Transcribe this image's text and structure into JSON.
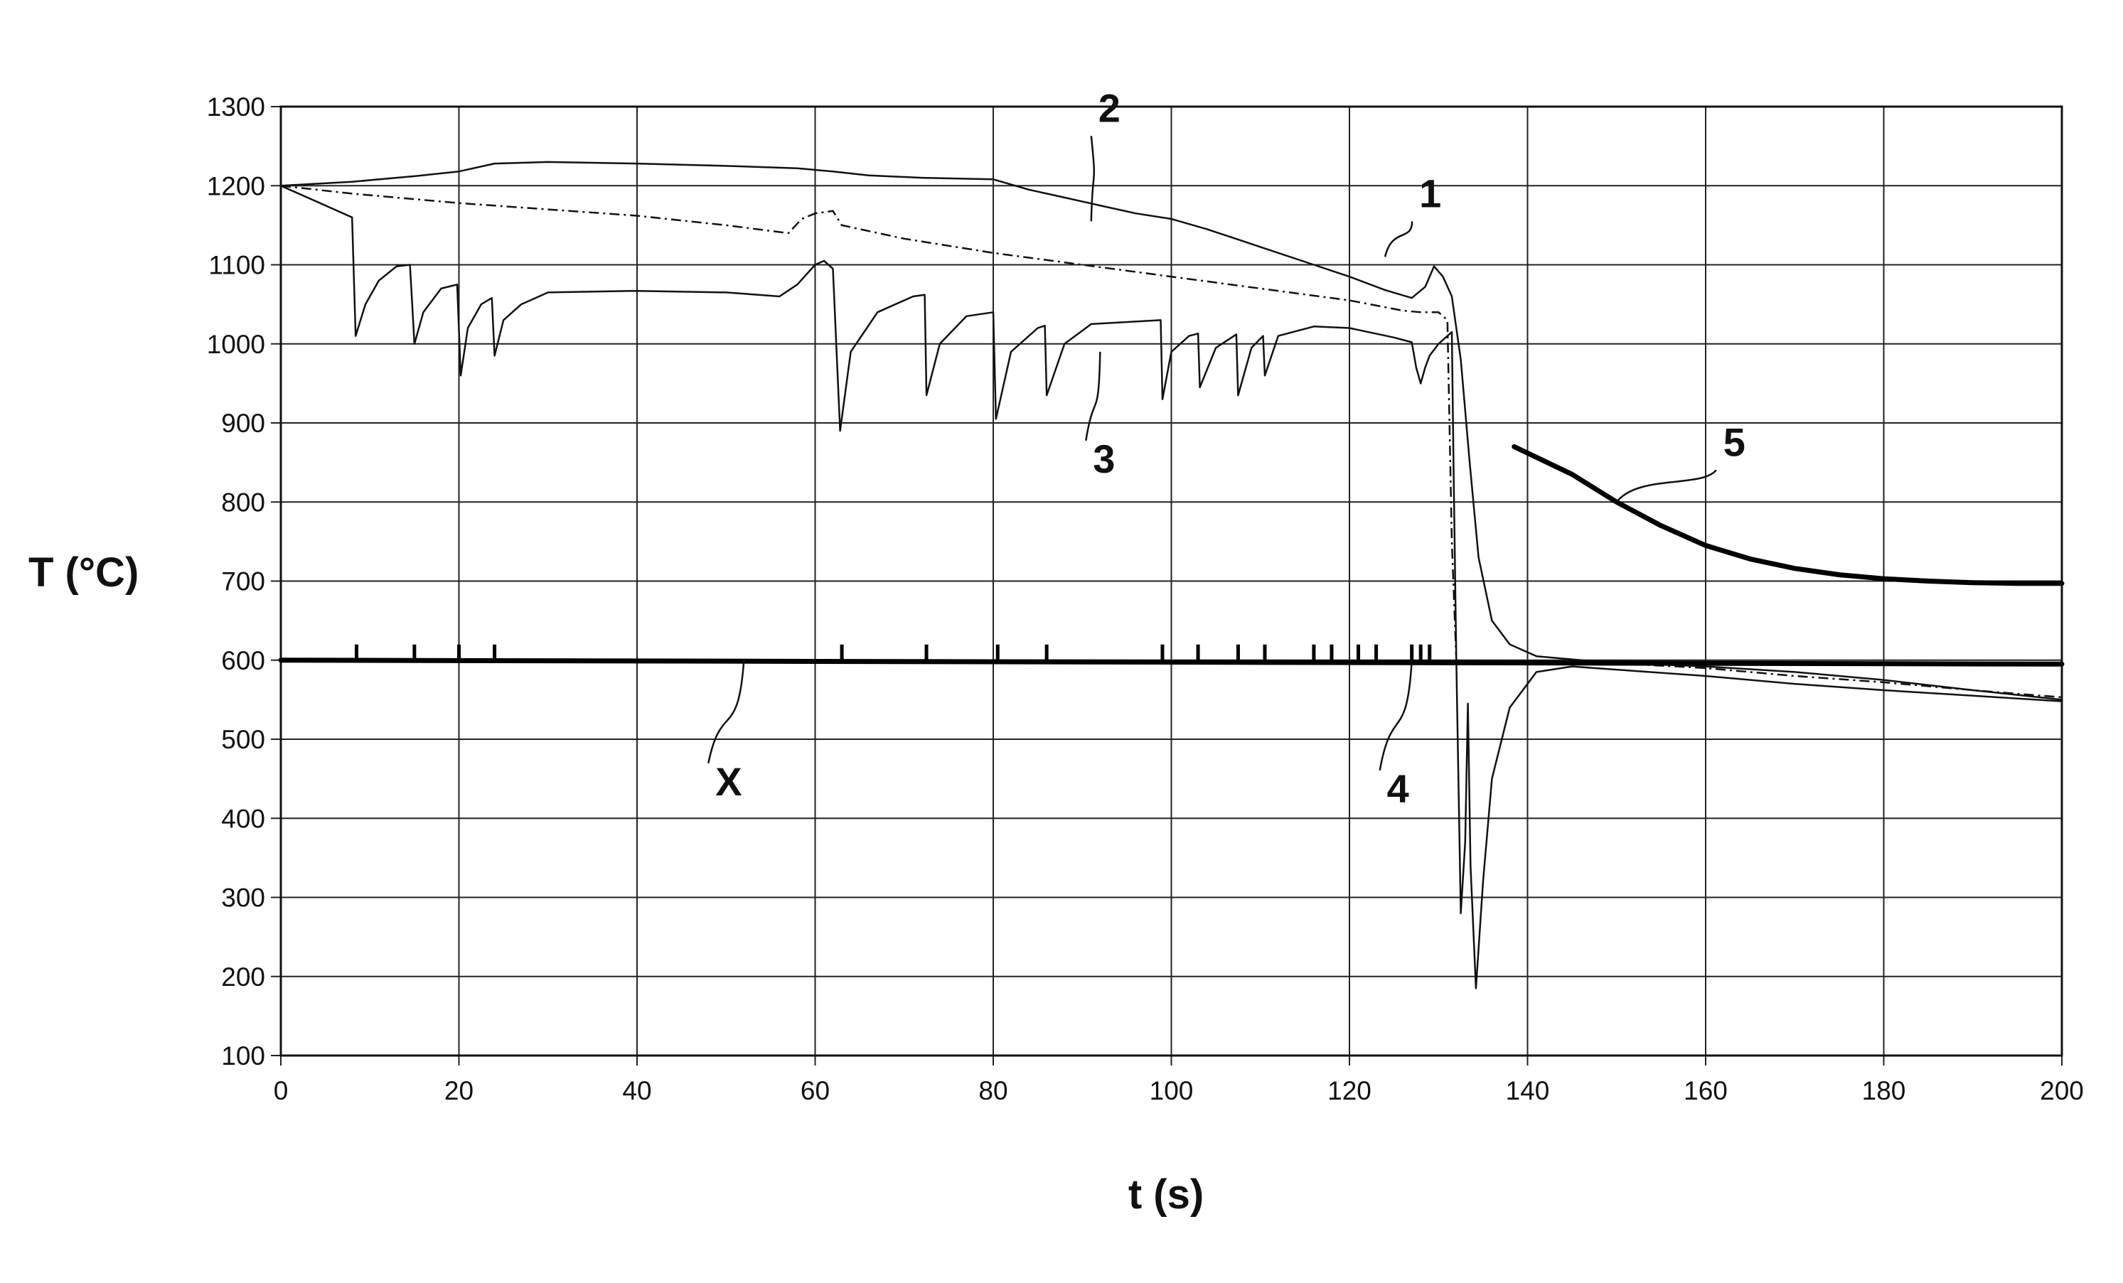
{
  "chart_data": {
    "type": "line",
    "title": "",
    "xlabel": "t (s)",
    "ylabel": "T (°C)",
    "xlim": [
      0,
      200
    ],
    "ylim": [
      100,
      1300
    ],
    "xticks": [
      0,
      20,
      40,
      60,
      80,
      100,
      120,
      140,
      160,
      180,
      200
    ],
    "yticks": [
      100,
      200,
      300,
      400,
      500,
      600,
      700,
      800,
      900,
      1000,
      1100,
      1200,
      1300
    ],
    "grid": true,
    "legend": "none",
    "series": [
      {
        "name": "1",
        "style": "solid",
        "points": [
          [
            0,
            1200
          ],
          [
            8,
            1205
          ],
          [
            15,
            1212
          ],
          [
            20,
            1218
          ],
          [
            24,
            1228
          ],
          [
            30,
            1230
          ],
          [
            40,
            1228
          ],
          [
            50,
            1225
          ],
          [
            58,
            1222
          ],
          [
            62,
            1218
          ],
          [
            66,
            1213
          ],
          [
            72,
            1210
          ],
          [
            80,
            1208
          ],
          [
            84,
            1195
          ],
          [
            88,
            1185
          ],
          [
            92,
            1175
          ],
          [
            96,
            1165
          ],
          [
            100,
            1158
          ],
          [
            104,
            1145
          ],
          [
            108,
            1130
          ],
          [
            112,
            1115
          ],
          [
            116,
            1100
          ],
          [
            120,
            1085
          ],
          [
            124,
            1068
          ],
          [
            127,
            1058
          ],
          [
            128.5,
            1072
          ],
          [
            129.5,
            1098
          ],
          [
            130.5,
            1085
          ],
          [
            131.5,
            1060
          ],
          [
            132.5,
            980
          ],
          [
            133.5,
            850
          ],
          [
            134.5,
            730
          ],
          [
            136,
            650
          ],
          [
            138,
            620
          ],
          [
            141,
            605
          ],
          [
            146,
            600
          ],
          [
            150,
            597
          ],
          [
            160,
            592
          ],
          [
            170,
            585
          ],
          [
            180,
            575
          ],
          [
            190,
            562
          ],
          [
            200,
            550
          ]
        ]
      },
      {
        "name": "2",
        "style": "dashed",
        "points": [
          [
            0,
            1200
          ],
          [
            8,
            1190
          ],
          [
            15,
            1183
          ],
          [
            20,
            1178
          ],
          [
            30,
            1170
          ],
          [
            40,
            1162
          ],
          [
            50,
            1150
          ],
          [
            57,
            1140
          ],
          [
            58.5,
            1158
          ],
          [
            60,
            1165
          ],
          [
            62,
            1168
          ],
          [
            63,
            1150
          ],
          [
            70,
            1133
          ],
          [
            80,
            1115
          ],
          [
            90,
            1100
          ],
          [
            100,
            1085
          ],
          [
            110,
            1070
          ],
          [
            120,
            1055
          ],
          [
            126,
            1042
          ],
          [
            128,
            1040
          ],
          [
            130,
            1040
          ],
          [
            131,
            1030
          ],
          [
            131.5,
            750
          ],
          [
            132,
            600
          ],
          [
            134,
            598
          ],
          [
            140,
            598
          ],
          [
            150,
            596
          ],
          [
            160,
            590
          ],
          [
            170,
            580
          ],
          [
            180,
            572
          ],
          [
            190,
            562
          ],
          [
            200,
            553
          ]
        ]
      },
      {
        "name": "3",
        "style": "solid",
        "points": [
          [
            0,
            1200
          ],
          [
            4,
            1180
          ],
          [
            8,
            1160
          ],
          [
            8.4,
            1010
          ],
          [
            9.5,
            1050
          ],
          [
            11,
            1080
          ],
          [
            13,
            1098
          ],
          [
            14.5,
            1100
          ],
          [
            15,
            1000
          ],
          [
            16,
            1040
          ],
          [
            18,
            1070
          ],
          [
            19.8,
            1075
          ],
          [
            20.2,
            960
          ],
          [
            21,
            1020
          ],
          [
            22.5,
            1050
          ],
          [
            23.7,
            1058
          ],
          [
            24,
            985
          ],
          [
            25,
            1030
          ],
          [
            27,
            1050
          ],
          [
            30,
            1065
          ],
          [
            40,
            1067
          ],
          [
            50,
            1065
          ],
          [
            56,
            1060
          ],
          [
            58,
            1075
          ],
          [
            60,
            1100
          ],
          [
            61,
            1105
          ],
          [
            62,
            1095
          ],
          [
            62.8,
            890
          ],
          [
            64,
            990
          ],
          [
            67,
            1040
          ],
          [
            71,
            1060
          ],
          [
            72.3,
            1062
          ],
          [
            72.5,
            935
          ],
          [
            74,
            1000
          ],
          [
            77,
            1035
          ],
          [
            80,
            1040
          ],
          [
            80.3,
            905
          ],
          [
            82,
            990
          ],
          [
            85,
            1020
          ],
          [
            85.8,
            1023
          ],
          [
            86,
            935
          ],
          [
            88,
            1000
          ],
          [
            91,
            1025
          ],
          [
            98.8,
            1030
          ],
          [
            99,
            930
          ],
          [
            100,
            990
          ],
          [
            102,
            1010
          ],
          [
            103,
            1013
          ],
          [
            103.2,
            945
          ],
          [
            105,
            995
          ],
          [
            107.3,
            1012
          ],
          [
            107.5,
            935
          ],
          [
            109,
            995
          ],
          [
            110.3,
            1010
          ],
          [
            110.5,
            960
          ],
          [
            112,
            1010
          ],
          [
            116,
            1022
          ],
          [
            120,
            1020
          ],
          [
            125,
            1008
          ],
          [
            127,
            1002
          ],
          [
            127.5,
            970
          ],
          [
            128,
            950
          ],
          [
            128.5,
            970
          ],
          [
            129,
            985
          ],
          [
            130,
            1000
          ],
          [
            131,
            1010
          ],
          [
            131.5,
            1015
          ],
          [
            131.7,
            840
          ],
          [
            132,
            600
          ],
          [
            132.5,
            280
          ],
          [
            133,
            370
          ],
          [
            133.3,
            545
          ],
          [
            133.6,
            340
          ],
          [
            134.2,
            185
          ],
          [
            135,
            320
          ],
          [
            136,
            450
          ],
          [
            138,
            540
          ],
          [
            141,
            585
          ],
          [
            145,
            592
          ],
          [
            150,
            588
          ],
          [
            160,
            580
          ],
          [
            170,
            570
          ],
          [
            180,
            562
          ],
          [
            190,
            555
          ],
          [
            200,
            548
          ]
        ]
      },
      {
        "name": "4",
        "style": "thick",
        "points": [
          [
            0,
            600
          ],
          [
            200,
            595
          ]
        ],
        "event_markers_t": [
          8.5,
          15,
          20,
          24,
          63,
          72.5,
          80.5,
          86,
          99,
          103,
          107.5,
          110.5,
          116,
          118,
          121,
          123,
          127,
          128,
          129
        ]
      },
      {
        "name": "5",
        "style": "thick",
        "points": [
          [
            138.5,
            870
          ],
          [
            145,
            835
          ],
          [
            150,
            800
          ],
          [
            155,
            770
          ],
          [
            160,
            745
          ],
          [
            165,
            728
          ],
          [
            170,
            716
          ],
          [
            175,
            708
          ],
          [
            180,
            703
          ],
          [
            185,
            700
          ],
          [
            190,
            698
          ],
          [
            195,
            697
          ],
          [
            200,
            697
          ]
        ]
      }
    ],
    "annotations": [
      {
        "text": "1",
        "x": 124,
        "y": 1110
      },
      {
        "text": "2",
        "x": 91,
        "y": 1155
      },
      {
        "text": "3",
        "x": 92,
        "y": 990
      },
      {
        "text": "4",
        "x": 127,
        "y": 600
      },
      {
        "text": "5",
        "x": 150,
        "y": 800
      },
      {
        "text": "X",
        "x": 52,
        "y": 600
      }
    ]
  }
}
